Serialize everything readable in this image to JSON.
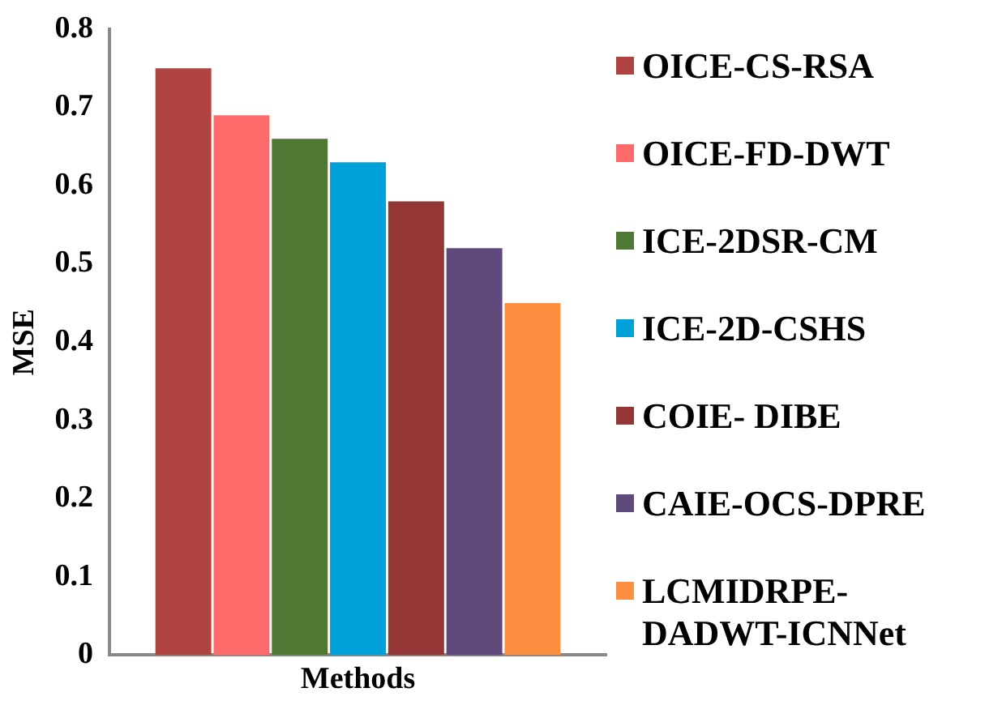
{
  "chart_data": {
    "type": "bar",
    "xlabel": "Methods",
    "ylabel": "MSE",
    "categories": [
      null
    ],
    "series": [
      {
        "name": "OICE-CS-RSA",
        "color": "#ae4340",
        "values": [
          0.75
        ]
      },
      {
        "name": "OICE-FD-DWT",
        "color": "#ff6a6a",
        "values": [
          0.69
        ]
      },
      {
        "name": "ICE-2DSR-CM",
        "color": "#4f7832",
        "values": [
          0.66
        ]
      },
      {
        "name": "ICE-2D-CSHS",
        "color": "#00a0d8",
        "values": [
          0.63
        ]
      },
      {
        "name": "COIE- DIBE",
        "color": "#943636",
        "values": [
          0.58
        ]
      },
      {
        "name": "CAIE-OCS-DPRE",
        "color": "#604a7b",
        "values": [
          0.52
        ]
      },
      {
        "name": "LCMIDRPE-DADWT-ICNNet",
        "color": "#ff8f40",
        "values": [
          0.45
        ]
      }
    ],
    "ylim": [
      0,
      0.8
    ],
    "yticks": [
      0,
      0.1,
      0.2,
      0.3,
      0.4,
      0.5,
      0.6,
      0.7,
      0.8
    ],
    "grid": false,
    "legend": "right"
  }
}
